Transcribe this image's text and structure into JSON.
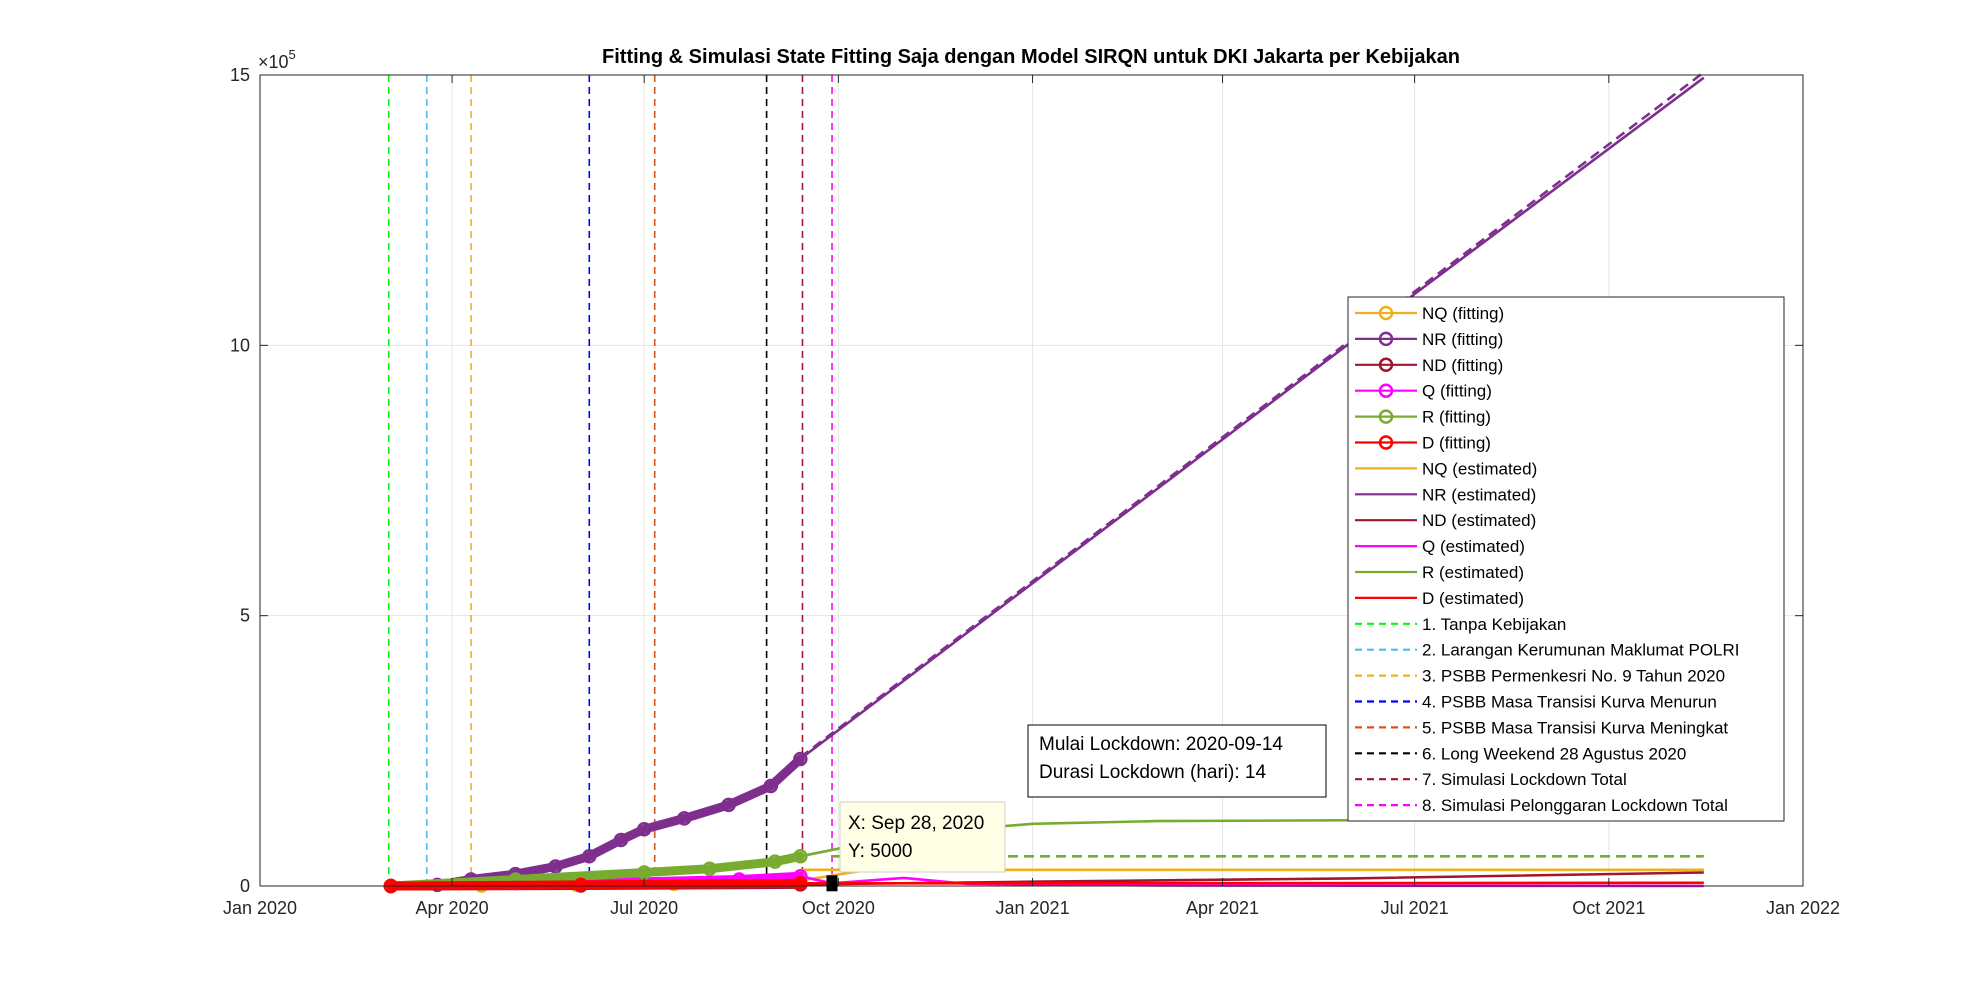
{
  "chart_data": {
    "type": "line",
    "title": "Fitting & Simulasi State Fitting Saja dengan Model SIRQN untuk DKI Jakarta per Kebijakan",
    "xlabel": "",
    "ylabel": "",
    "exponent_label": "×10",
    "exponent_power": "5",
    "xlim": [
      "2020-01-01",
      "2022-01-01"
    ],
    "ylim": [
      0,
      15
    ],
    "x_ticks": [
      {
        "date": "2020-01-01",
        "label": "Jan 2020"
      },
      {
        "date": "2020-04-01",
        "label": "Apr 2020"
      },
      {
        "date": "2020-07-01",
        "label": "Jul 2020"
      },
      {
        "date": "2020-10-01",
        "label": "Oct 2020"
      },
      {
        "date": "2021-01-01",
        "label": "Jan 2021"
      },
      {
        "date": "2021-04-01",
        "label": "Apr 2021"
      },
      {
        "date": "2021-07-01",
        "label": "Jul 2021"
      },
      {
        "date": "2021-10-01",
        "label": "Oct 2021"
      },
      {
        "date": "2022-01-01",
        "label": "Jan 2022"
      }
    ],
    "y_ticks": [
      {
        "value": 0,
        "label": "0"
      },
      {
        "value": 5,
        "label": "5"
      },
      {
        "value": 10,
        "label": "10"
      },
      {
        "value": 15,
        "label": "15"
      }
    ],
    "grid": true,
    "legend_position": "right",
    "series": [
      {
        "name": "NQ (fitting)",
        "kind": "fitting",
        "color": "#EDB120",
        "points": [
          [
            "2020-03-03",
            0.0
          ],
          [
            "2020-04-15",
            0.01
          ],
          [
            "2020-05-30",
            0.02
          ],
          [
            "2020-07-15",
            0.04
          ],
          [
            "2020-09-13",
            0.07
          ]
        ]
      },
      {
        "name": "NR (fitting)",
        "kind": "fitting",
        "color": "#7E2F8E",
        "points": [
          [
            "2020-03-03",
            0.0
          ],
          [
            "2020-03-25",
            0.02
          ],
          [
            "2020-04-10",
            0.12
          ],
          [
            "2020-05-01",
            0.22
          ],
          [
            "2020-05-20",
            0.36
          ],
          [
            "2020-06-05",
            0.55
          ],
          [
            "2020-06-20",
            0.85
          ],
          [
            "2020-07-01",
            1.05
          ],
          [
            "2020-07-20",
            1.25
          ],
          [
            "2020-08-10",
            1.5
          ],
          [
            "2020-08-30",
            1.85
          ],
          [
            "2020-09-13",
            2.35
          ]
        ]
      },
      {
        "name": "ND (fitting)",
        "kind": "fitting",
        "color": "#A2142F",
        "points": [
          [
            "2020-03-03",
            0.0
          ],
          [
            "2020-06-01",
            0.01
          ],
          [
            "2020-09-13",
            0.03
          ]
        ]
      },
      {
        "name": "Q (fitting)",
        "kind": "fitting",
        "color": "#FF00FF",
        "points": [
          [
            "2020-03-03",
            0.0
          ],
          [
            "2020-05-01",
            0.05
          ],
          [
            "2020-07-01",
            0.08
          ],
          [
            "2020-08-15",
            0.12
          ],
          [
            "2020-09-13",
            0.18
          ]
        ]
      },
      {
        "name": "R (fitting)",
        "kind": "fitting",
        "color": "#77AC30",
        "points": [
          [
            "2020-03-03",
            0.0
          ],
          [
            "2020-05-01",
            0.12
          ],
          [
            "2020-07-01",
            0.25
          ],
          [
            "2020-08-01",
            0.32
          ],
          [
            "2020-09-01",
            0.45
          ],
          [
            "2020-09-13",
            0.55
          ]
        ]
      },
      {
        "name": "D (fitting)",
        "kind": "fitting",
        "color": "#FF0000",
        "points": [
          [
            "2020-03-03",
            0.0
          ],
          [
            "2020-06-01",
            0.02
          ],
          [
            "2020-09-13",
            0.05
          ]
        ]
      },
      {
        "name": "NQ (estimated)",
        "kind": "estimated",
        "color": "#EDB120",
        "points": [
          [
            "2020-09-13",
            0.1
          ],
          [
            "2020-10-15",
            0.3
          ],
          [
            "2021-01-01",
            0.3
          ],
          [
            "2021-11-15",
            0.3
          ]
        ]
      },
      {
        "name": "NR (estimated)",
        "kind": "estimated",
        "color": "#7E2F8E",
        "points": [
          [
            "2020-09-13",
            2.35
          ],
          [
            "2021-07-01",
            10.95
          ],
          [
            "2021-11-15",
            14.95
          ]
        ]
      },
      {
        "name": "ND (estimated)",
        "kind": "estimated",
        "color": "#A2142F",
        "points": [
          [
            "2020-09-13",
            0.03
          ],
          [
            "2021-01-01",
            0.08
          ],
          [
            "2021-06-01",
            0.14
          ],
          [
            "2021-11-15",
            0.25
          ]
        ]
      },
      {
        "name": "Q (estimated)",
        "kind": "estimated",
        "color": "#FF00FF",
        "points": [
          [
            "2020-09-13",
            0.18
          ],
          [
            "2020-09-28",
            0.05
          ],
          [
            "2020-11-01",
            0.15
          ],
          [
            "2020-12-01",
            0.04
          ],
          [
            "2021-03-01",
            0.01
          ],
          [
            "2021-11-15",
            0.0
          ]
        ]
      },
      {
        "name": "R (estimated)",
        "kind": "estimated",
        "color": "#77AC30",
        "points": [
          [
            "2020-09-13",
            0.55
          ],
          [
            "2020-10-15",
            0.8
          ],
          [
            "2020-11-15",
            1.0
          ],
          [
            "2021-01-01",
            1.15
          ],
          [
            "2021-03-01",
            1.2
          ],
          [
            "2021-07-01",
            1.22
          ],
          [
            "2021-07-10",
            1.22
          ]
        ]
      },
      {
        "name": "D (estimated)",
        "kind": "estimated",
        "color": "#FF0000",
        "points": [
          [
            "2020-09-13",
            0.05
          ],
          [
            "2021-01-01",
            0.05
          ],
          [
            "2021-11-15",
            0.06
          ]
        ]
      }
    ],
    "extra_lines": [
      {
        "label": "NR simulation",
        "color": "#7E2F8E",
        "dash": true,
        "points": [
          [
            "2020-09-13",
            2.38
          ],
          [
            "2021-11-15",
            15.05
          ]
        ]
      },
      {
        "label": "R simulation",
        "color": "#77AC30",
        "dash": true,
        "points": [
          [
            "2020-09-28",
            0.55
          ],
          [
            "2021-11-15",
            0.55
          ]
        ]
      },
      {
        "label": "NQ simulation",
        "color": "#EDB120",
        "dash": false,
        "points": [
          [
            "2020-09-13",
            0.3
          ],
          [
            "2021-11-15",
            0.3
          ]
        ]
      }
    ],
    "policy_lines": [
      {
        "name": "1. Tanpa Kebijakan",
        "date": "2020-03-02",
        "color": "#00FF00"
      },
      {
        "name": "2. Larangan Kerumunan Maklumat POLRI",
        "date": "2020-03-20",
        "color": "#4DBEEE"
      },
      {
        "name": "3. PSBB Permenkesri No. 9 Tahun 2020",
        "date": "2020-04-10",
        "color": "#EDB120"
      },
      {
        "name": "4. PSBB Masa Transisi Kurva Menurun",
        "date": "2020-06-05",
        "color": "#0000FF"
      },
      {
        "name": "5. PSBB Masa Transisi Kurva Meningkat",
        "date": "2020-07-06",
        "color": "#D95319"
      },
      {
        "name": "6. Long Weekend 28 Agustus 2020",
        "date": "2020-08-28",
        "color": "#000000"
      },
      {
        "name": "7. Simulasi Lockdown Total",
        "date": "2020-09-14",
        "color": "#A2142F"
      },
      {
        "name": "8. Simulasi Pelonggaran Lockdown Total",
        "date": "2020-09-28",
        "color": "#FF00FF"
      }
    ],
    "annotation": {
      "line1": "Mulai Lockdown: 2020-09-14",
      "line2": "Durasi Lockdown (hari): 14"
    },
    "datatip": {
      "x_text": "X: Sep 28, 2020",
      "y_text": "Y: 5000",
      "date": "2020-09-28",
      "value": 0.05
    }
  }
}
